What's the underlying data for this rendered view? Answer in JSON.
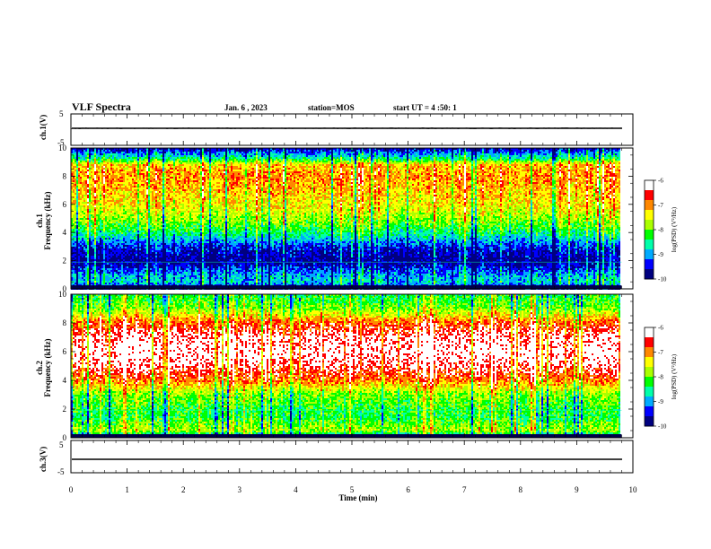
{
  "header": {
    "title": "VLF Spectra",
    "date": "Jan. 6 , 2023",
    "station": "station=MOS",
    "start": "start UT = 4 :50: 1"
  },
  "chart_data": [
    {
      "type": "line",
      "name": "ch1-waveform",
      "ylabel": "ch.1(V)",
      "yticks": [
        "5",
        "-5"
      ],
      "ylim": [
        -5,
        5
      ],
      "level": 0
    },
    {
      "type": "heatmap",
      "name": "ch1-spectrogram",
      "ylabel_lines": [
        "ch.1",
        "Frequency (kHz)"
      ],
      "yticks": [
        "0",
        "2",
        "4",
        "6",
        "8",
        "10"
      ],
      "ylim": [
        0,
        10
      ],
      "band_profile": [
        {
          "f": 0.0,
          "level": 0.1
        },
        {
          "f": 0.5,
          "level": 0.3
        },
        {
          "f": 1.0,
          "level": 0.25
        },
        {
          "f": 2.0,
          "level": 0.05
        },
        {
          "f": 3.0,
          "level": 0.15
        },
        {
          "f": 4.0,
          "level": 0.4
        },
        {
          "f": 5.0,
          "level": 0.55
        },
        {
          "f": 6.0,
          "level": 0.65
        },
        {
          "f": 7.0,
          "level": 0.7
        },
        {
          "f": 8.0,
          "level": 0.75
        },
        {
          "f": 8.8,
          "level": 0.7
        },
        {
          "f": 9.2,
          "level": 0.4
        },
        {
          "f": 9.7,
          "level": 0.2
        },
        {
          "f": 10.0,
          "level": 0.05
        }
      ],
      "colorbar": {
        "label": "log(PSD) (V²/Hz)",
        "ticks": [
          "-6",
          "-7",
          "-8",
          "-9",
          "-10"
        ]
      }
    },
    {
      "type": "heatmap",
      "name": "ch2-spectrogram",
      "ylabel_lines": [
        "ch.2",
        "Frequency (kHz)"
      ],
      "yticks": [
        "0",
        "2",
        "4",
        "6",
        "8",
        "10"
      ],
      "ylim": [
        0,
        10
      ],
      "band_profile": [
        {
          "f": 0.0,
          "level": 0.15
        },
        {
          "f": 0.5,
          "level": 0.55
        },
        {
          "f": 1.5,
          "level": 0.4
        },
        {
          "f": 3.0,
          "level": 0.5
        },
        {
          "f": 4.0,
          "level": 0.75
        },
        {
          "f": 5.0,
          "level": 0.9
        },
        {
          "f": 6.0,
          "level": 0.95
        },
        {
          "f": 7.0,
          "level": 0.92
        },
        {
          "f": 8.0,
          "level": 0.78
        },
        {
          "f": 9.0,
          "level": 0.5
        },
        {
          "f": 10.0,
          "level": 0.4
        }
      ],
      "colorbar": {
        "label": "log(PSD) (V²/Hz)",
        "ticks": [
          "-6",
          "-7",
          "-8",
          "-9",
          "-10"
        ]
      }
    },
    {
      "type": "line",
      "name": "ch3-waveform",
      "ylabel": "ch.3(V)",
      "yticks": [
        "5",
        "-5"
      ],
      "ylim": [
        -5,
        5
      ],
      "level": 0
    }
  ],
  "xaxis": {
    "label": "Time (min)",
    "ticks": [
      "0",
      "1",
      "2",
      "3",
      "4",
      "5",
      "6",
      "7",
      "8",
      "9",
      "10"
    ],
    "xlim": [
      0,
      10
    ],
    "data_end": 9.8
  },
  "colors": {
    "scale": [
      "#000080",
      "#0000ff",
      "#00aaff",
      "#00ffaa",
      "#00ff00",
      "#aaff00",
      "#ffff00",
      "#ff8800",
      "#ff0000",
      "#ffffff"
    ]
  }
}
